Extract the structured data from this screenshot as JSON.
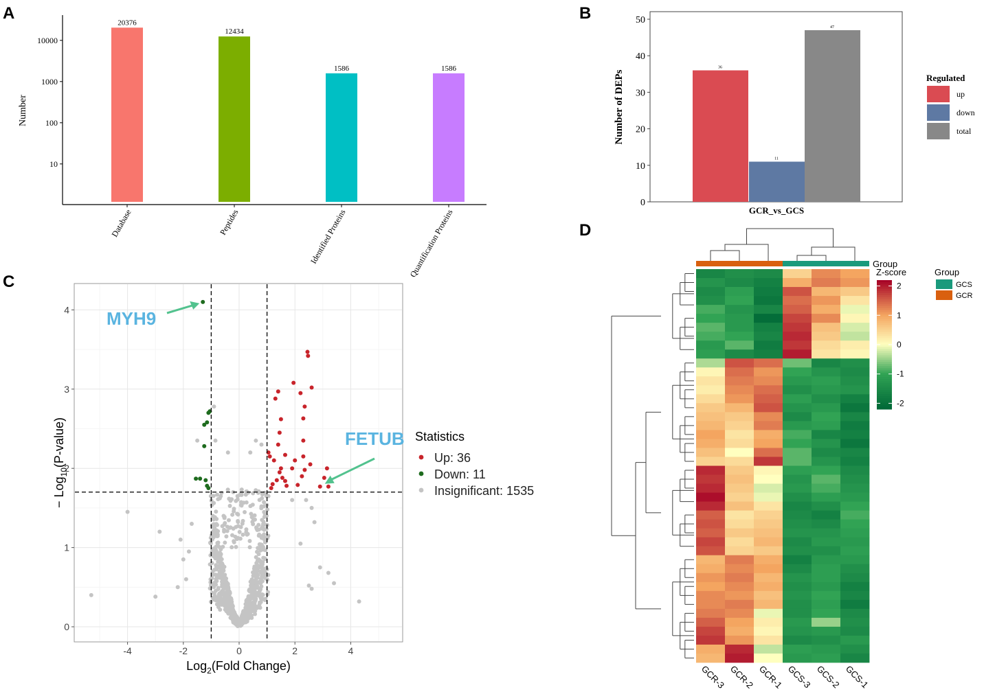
{
  "panels": {
    "a": "A",
    "b": "B",
    "c": "C",
    "d": "D"
  },
  "chart_data": [
    {
      "panel": "A",
      "type": "bar",
      "yscale": "log10",
      "ylabel": "Number",
      "categories": [
        "Database",
        "Peptides",
        "Identified Proteins",
        "Quantification Proteins"
      ],
      "values": [
        20376,
        12434,
        1586,
        1586
      ],
      "data_labels": [
        "20376",
        "12434",
        "1586",
        "1586"
      ],
      "colors": [
        "#F8766D",
        "#7CAE00",
        "#00BFC4",
        "#C77CFF"
      ],
      "yticks": [
        10,
        100,
        1000,
        10000
      ],
      "ytick_labels": [
        "10",
        "100",
        "1000",
        "10000"
      ],
      "ylim": [
        1,
        25000
      ]
    },
    {
      "panel": "B",
      "type": "bar",
      "xlabel": "GCR_vs_GCS",
      "ylabel": "Number of DEPs",
      "categories": [
        "GCR_vs_GCS"
      ],
      "series": [
        {
          "name": "up",
          "values": [
            36
          ],
          "label": "36",
          "color": "#DA4B52"
        },
        {
          "name": "down",
          "values": [
            11
          ],
          "label": "11",
          "color": "#5E79A3"
        },
        {
          "name": "total",
          "values": [
            47
          ],
          "label": "47",
          "color": "#888888"
        }
      ],
      "legend_title": "Regulated",
      "yticks": [
        0,
        10,
        20,
        30,
        40,
        50
      ],
      "ytick_labels": [
        "0",
        "10",
        "20",
        "30",
        "40",
        "50"
      ],
      "ylim": [
        0,
        52
      ]
    },
    {
      "panel": "C",
      "type": "scatter",
      "title": "",
      "xlabel_main": "Log",
      "xlabel_sub": "2",
      "xlabel_rest": "(Fold Change)",
      "ylabel_prefix": "− Log",
      "ylabel_sub": "10",
      "ylabel_rest": "(P-value)",
      "xlim": [
        -5.7,
        5.9
      ],
      "ylim": [
        -0.2,
        4.3
      ],
      "xticks": [
        -4,
        -2,
        0,
        2,
        4
      ],
      "xtick_labels": [
        "-4",
        "-2",
        "0",
        "2",
        "4"
      ],
      "yticks": [
        0,
        1,
        2,
        3,
        4
      ],
      "ytick_labels": [
        "0",
        "1",
        "2",
        "3",
        "4"
      ],
      "thresholds": {
        "log2fc": [
          -1,
          1
        ],
        "neglog10p": 1.7
      },
      "legend_title": "Statistics",
      "legend": [
        {
          "label": "Up: 36",
          "color": "#C8242B"
        },
        {
          "label": "Down: 11",
          "color": "#1E6B1E"
        },
        {
          "label": "Insignificant: 1535",
          "color": "#C4C4C4"
        }
      ],
      "annotations": [
        {
          "label": "MYH9",
          "x": -1.3,
          "y": 4.1,
          "color": "#5AB4E0"
        },
        {
          "label": "FETUB",
          "x": 2.85,
          "y": 1.77,
          "color": "#5AB4E0"
        }
      ],
      "series": [
        {
          "name": "Up",
          "color": "#C8242B",
          "points": [
            [
              2.45,
              3.47
            ],
            [
              2.47,
              3.42
            ],
            [
              2.6,
              3.02
            ],
            [
              1.95,
              3.08
            ],
            [
              1.4,
              2.97
            ],
            [
              2.2,
              2.95
            ],
            [
              1.3,
              2.88
            ],
            [
              2.35,
              2.78
            ],
            [
              2.3,
              2.63
            ],
            [
              1.5,
              2.62
            ],
            [
              1.45,
              2.45
            ],
            [
              2.3,
              2.35
            ],
            [
              1.4,
              2.3
            ],
            [
              1.05,
              2.2
            ],
            [
              1.1,
              2.15
            ],
            [
              1.65,
              2.17
            ],
            [
              2.3,
              2.15
            ],
            [
              1.25,
              2.1
            ],
            [
              2.0,
              2.1
            ],
            [
              2.55,
              2.05
            ],
            [
              1.5,
              2.0
            ],
            [
              1.9,
              2.0
            ],
            [
              2.35,
              1.98
            ],
            [
              3.15,
              2.0
            ],
            [
              1.45,
              1.95
            ],
            [
              1.55,
              1.88
            ],
            [
              2.25,
              1.9
            ],
            [
              1.35,
              1.85
            ],
            [
              1.65,
              1.84
            ],
            [
              3.05,
              1.88
            ],
            [
              1.2,
              1.8
            ],
            [
              1.7,
              1.78
            ],
            [
              2.1,
              1.79
            ],
            [
              1.15,
              1.75
            ],
            [
              2.9,
              1.77
            ],
            [
              3.2,
              1.77
            ]
          ]
        },
        {
          "name": "Down",
          "color": "#1E6B1E",
          "points": [
            [
              -1.3,
              4.1
            ],
            [
              -1.05,
              2.72
            ],
            [
              -1.1,
              2.7
            ],
            [
              -1.15,
              2.58
            ],
            [
              -1.25,
              2.55
            ],
            [
              -1.25,
              2.28
            ],
            [
              -1.55,
              1.87
            ],
            [
              -1.4,
              1.87
            ],
            [
              -1.2,
              1.85
            ],
            [
              -1.15,
              1.78
            ],
            [
              -1.1,
              1.75
            ]
          ]
        }
      ]
    },
    {
      "panel": "D",
      "type": "heatmap",
      "columns": [
        "GCR-3",
        "GCR-2",
        "GCR-1",
        "GCS-3",
        "GCS-2",
        "GCS-1"
      ],
      "column_groups": [
        "GCR",
        "GCR",
        "GCR",
        "GCS",
        "GCS",
        "GCS"
      ],
      "group_label": "Group",
      "group_legend_title": "Group",
      "groups": [
        {
          "name": "GCS",
          "color": "#1A9A7C"
        },
        {
          "name": "GCR",
          "color": "#D9600F"
        }
      ],
      "colorbar_title": "Z-score",
      "colorbar_ticks": [
        2,
        1,
        0,
        -1,
        -2
      ],
      "colorbar_labels": [
        "2",
        "1",
        "0",
        "-1",
        "-2"
      ],
      "colorbar_range": [
        -2.2,
        2.2
      ],
      "values": [
        [
          -1.6,
          -1.4,
          -1.5,
          0.5,
          1.2,
          1.0
        ],
        [
          -1.3,
          -1.5,
          -1.7,
          0.9,
          1.3,
          1.1
        ],
        [
          -1.5,
          -1.1,
          -1.8,
          1.6,
          0.8,
          0.6
        ],
        [
          -1.4,
          -1.0,
          -1.9,
          1.4,
          1.1,
          0.3
        ],
        [
          -0.9,
          -1.3,
          -1.6,
          1.5,
          0.9,
          -0.1
        ],
        [
          -1.0,
          -1.2,
          -2.1,
          1.7,
          1.2,
          0.1
        ],
        [
          -0.8,
          -1.2,
          -1.7,
          1.8,
          0.7,
          -0.2
        ],
        [
          -0.9,
          -1.0,
          -1.6,
          1.9,
          0.6,
          -0.3
        ],
        [
          -1.2,
          -0.8,
          -1.8,
          1.8,
          0.4,
          0.2
        ],
        [
          -1.1,
          -1.5,
          -1.7,
          2.0,
          0.3,
          0.1
        ],
        [
          -0.4,
          1.6,
          1.4,
          -0.7,
          -1.6,
          -1.4
        ],
        [
          0.1,
          1.4,
          1.1,
          -1.0,
          -1.3,
          -1.5
        ],
        [
          0.3,
          1.3,
          1.2,
          -1.2,
          -1.1,
          -1.4
        ],
        [
          0.2,
          1.2,
          1.4,
          -1.4,
          -1.2,
          -1.3
        ],
        [
          0.4,
          1.1,
          1.5,
          -1.1,
          -1.4,
          -1.7
        ],
        [
          0.6,
          0.8,
          1.6,
          -1.3,
          -1.2,
          -1.9
        ],
        [
          0.7,
          0.6,
          1.2,
          -1.5,
          -1.0,
          -1.6
        ],
        [
          0.8,
          0.5,
          1.3,
          -1.2,
          -1.1,
          -1.8
        ],
        [
          1.0,
          0.3,
          0.9,
          -0.9,
          -1.6,
          -1.7
        ],
        [
          0.9,
          0.4,
          1.0,
          -1.0,
          -1.3,
          -1.9
        ],
        [
          0.7,
          0.0,
          1.4,
          -0.8,
          -1.5,
          -1.6
        ],
        [
          0.5,
          0.4,
          1.8,
          -0.8,
          -1.3,
          -1.7
        ],
        [
          1.9,
          0.6,
          0.1,
          -1.1,
          -1.0,
          -1.5
        ],
        [
          1.8,
          0.7,
          0.0,
          -1.3,
          -0.8,
          -1.4
        ],
        [
          1.9,
          0.6,
          -0.2,
          -1.2,
          -0.9,
          -1.3
        ],
        [
          2.1,
          0.5,
          -0.1,
          -1.4,
          -1.1,
          -1.2
        ],
        [
          1.9,
          0.7,
          0.3,
          -1.6,
          -1.4,
          -1.0
        ],
        [
          1.5,
          0.3,
          0.5,
          -1.5,
          -1.7,
          -0.9
        ],
        [
          1.6,
          0.4,
          0.6,
          -1.4,
          -1.5,
          -1.0
        ],
        [
          1.5,
          0.6,
          0.7,
          -1.3,
          -1.3,
          -1.1
        ],
        [
          1.7,
          0.4,
          0.8,
          -1.5,
          -1.2,
          -1.2
        ],
        [
          1.6,
          0.5,
          0.6,
          -1.4,
          -1.4,
          -1.1
        ],
        [
          0.8,
          1.3,
          0.9,
          -1.7,
          -1.2,
          -1.2
        ],
        [
          0.9,
          1.2,
          1.0,
          -1.5,
          -1.1,
          -1.4
        ],
        [
          1.1,
          1.3,
          0.8,
          -1.3,
          -1.1,
          -1.5
        ],
        [
          1.0,
          1.2,
          0.9,
          -1.4,
          -1.2,
          -1.7
        ],
        [
          1.2,
          1.1,
          0.7,
          -1.3,
          -1.0,
          -1.6
        ],
        [
          1.2,
          1.3,
          0.8,
          -1.4,
          -1.1,
          -1.8
        ],
        [
          1.3,
          1.2,
          -0.1,
          -1.4,
          -1.0,
          -1.5
        ],
        [
          1.5,
          1.0,
          0.2,
          -1.2,
          -0.5,
          -1.4
        ],
        [
          1.7,
          0.9,
          0.1,
          -1.3,
          -1.2,
          -1.5
        ],
        [
          1.8,
          1.1,
          0.3,
          -1.5,
          -1.4,
          -1.2
        ],
        [
          0.9,
          1.9,
          -0.3,
          -1.1,
          -1.2,
          -1.4
        ],
        [
          0.8,
          2.0,
          0.0,
          -1.2,
          -1.1,
          -1.6
        ]
      ]
    }
  ]
}
